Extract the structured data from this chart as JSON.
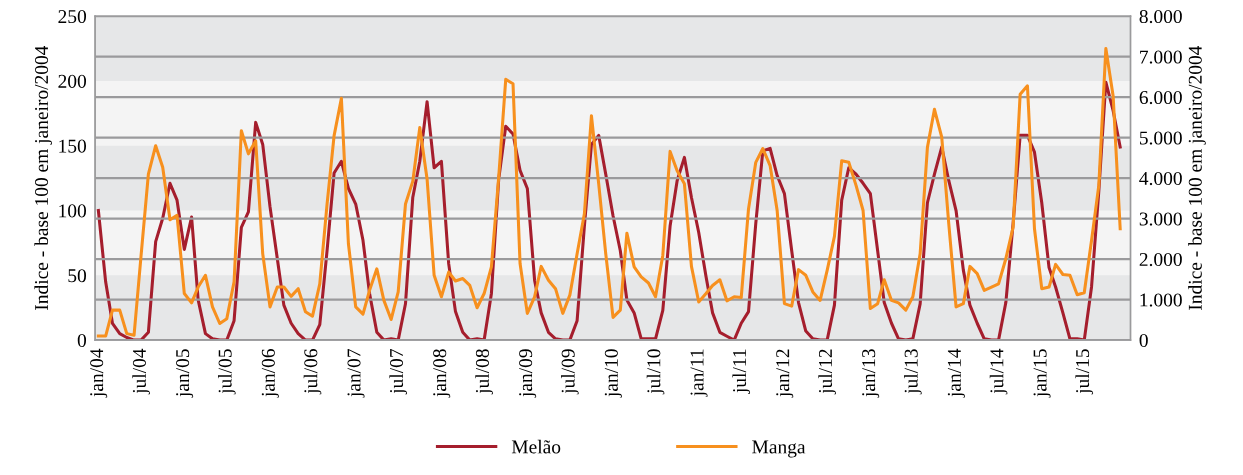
{
  "chart_data": {
    "type": "line",
    "ylabel": "Indice - base 100 em janeiro/2004",
    "y2label": "Indice - base 100 em janeiro/2004",
    "x": [
      "2004-01",
      "2004-02",
      "2004-03",
      "2004-04",
      "2004-05",
      "2004-06",
      "2004-07",
      "2004-08",
      "2004-09",
      "2004-10",
      "2004-11",
      "2004-12",
      "2005-01",
      "2005-02",
      "2005-03",
      "2005-04",
      "2005-05",
      "2005-06",
      "2005-07",
      "2005-08",
      "2005-09",
      "2005-10",
      "2005-11",
      "2005-12",
      "2006-01",
      "2006-02",
      "2006-03",
      "2006-04",
      "2006-05",
      "2006-06",
      "2006-07",
      "2006-08",
      "2006-09",
      "2006-10",
      "2006-11",
      "2006-12",
      "2007-01",
      "2007-02",
      "2007-03",
      "2007-04",
      "2007-05",
      "2007-06",
      "2007-07",
      "2007-08",
      "2007-09",
      "2007-10",
      "2007-11",
      "2007-12",
      "2008-01",
      "2008-02",
      "2008-03",
      "2008-04",
      "2008-05",
      "2008-06",
      "2008-07",
      "2008-08",
      "2008-09",
      "2008-10",
      "2008-11",
      "2008-12",
      "2009-01",
      "2009-02",
      "2009-03",
      "2009-04",
      "2009-05",
      "2009-06",
      "2009-07",
      "2009-08",
      "2009-09",
      "2009-10",
      "2009-11",
      "2009-12",
      "2010-01",
      "2010-02",
      "2010-03",
      "2010-04",
      "2010-05",
      "2010-06",
      "2010-07",
      "2010-08",
      "2010-09",
      "2010-10",
      "2010-11",
      "2010-12",
      "2011-01",
      "2011-02",
      "2011-03",
      "2011-04",
      "2011-05",
      "2011-06",
      "2011-07",
      "2011-08",
      "2011-09",
      "2011-10",
      "2011-11",
      "2011-12",
      "2012-01",
      "2012-02",
      "2012-03",
      "2012-04",
      "2012-05",
      "2012-06",
      "2012-07",
      "2012-08",
      "2012-09",
      "2012-10",
      "2012-11",
      "2012-12",
      "2013-01",
      "2013-02",
      "2013-03",
      "2013-04",
      "2013-05",
      "2013-06",
      "2013-07",
      "2013-08",
      "2013-09",
      "2013-10",
      "2013-11",
      "2013-12",
      "2014-01",
      "2014-02",
      "2014-03",
      "2014-04",
      "2014-05",
      "2014-06",
      "2014-07",
      "2014-08",
      "2014-09",
      "2014-10",
      "2014-11",
      "2014-12",
      "2015-01",
      "2015-02",
      "2015-03",
      "2015-04",
      "2015-05",
      "2015-06",
      "2015-07",
      "2015-08",
      "2015-09",
      "2015-10",
      "2015-11",
      "2015-12"
    ],
    "series": [
      {
        "name": "Melão",
        "color": "#a51e2d",
        "values": [
          100,
          45,
          13,
          5,
          2,
          0,
          0,
          6,
          76,
          94,
          121,
          108,
          70,
          95,
          31,
          5,
          1,
          0,
          0,
          15,
          87,
          99,
          168,
          151,
          103,
          63,
          27,
          13,
          5,
          0,
          0,
          12,
          69,
          129,
          138,
          117,
          105,
          77,
          36,
          6,
          0,
          1,
          0,
          28,
          110,
          138,
          184,
          133,
          138,
          59,
          22,
          6,
          0,
          1,
          0,
          36,
          124,
          165,
          159,
          131,
          117,
          46,
          21,
          6,
          1,
          0,
          0,
          15,
          88,
          151,
          158,
          128,
          96,
          69,
          31,
          21,
          1,
          1,
          1,
          23,
          88,
          123,
          141,
          110,
          83,
          49,
          21,
          6,
          3,
          0,
          13,
          22,
          90,
          146,
          148,
          127,
          113,
          69,
          29,
          7,
          1,
          0,
          0,
          27,
          108,
          133,
          128,
          121,
          113,
          69,
          29,
          13,
          1,
          0,
          1,
          28,
          106,
          128,
          149,
          123,
          100,
          54,
          27,
          13,
          1,
          0,
          0,
          29,
          90,
          158,
          158,
          145,
          106,
          56,
          41,
          21,
          1,
          1,
          0,
          41,
          115,
          199,
          177,
          149
        ]
      },
      {
        "name": "Manga",
        "color": "#f7901e",
        "axis": "y2",
        "values": [
          100,
          100,
          740,
          740,
          160,
          120,
          2100,
          4100,
          4800,
          4270,
          2970,
          3080,
          1150,
          920,
          1310,
          1600,
          820,
          410,
          530,
          1440,
          5170,
          4600,
          4920,
          2130,
          820,
          1310,
          1310,
          1080,
          1270,
          700,
          590,
          1390,
          3360,
          5050,
          5970,
          2380,
          820,
          640,
          1230,
          1760,
          980,
          510,
          1190,
          3360,
          3920,
          5250,
          3980,
          1600,
          1070,
          1680,
          1460,
          1520,
          1350,
          800,
          1150,
          1810,
          4020,
          6440,
          6330,
          1890,
          660,
          1070,
          1820,
          1480,
          1270,
          660,
          1110,
          2130,
          3120,
          5540,
          3860,
          2130,
          560,
          740,
          2640,
          1810,
          1560,
          1410,
          1070,
          2090,
          4660,
          4180,
          3860,
          1820,
          940,
          1150,
          1350,
          1490,
          970,
          1070,
          1050,
          3240,
          4390,
          4730,
          4310,
          3200,
          900,
          840,
          1740,
          1600,
          1190,
          980,
          1720,
          2560,
          4430,
          4390,
          3820,
          3200,
          780,
          900,
          1490,
          980,
          920,
          740,
          1070,
          2130,
          4760,
          5700,
          5010,
          2870,
          820,
          900,
          1820,
          1640,
          1230,
          1310,
          1390,
          2010,
          2790,
          6070,
          6280,
          2750,
          1270,
          1310,
          1870,
          1620,
          1600,
          1120,
          1170,
          2460,
          3820,
          7200,
          6030,
          2750
        ]
      }
    ],
    "xlim": [
      "2003-12-18",
      "2016-01-14"
    ],
    "xticks": [
      {
        "value": "2004-01",
        "label": "jan/04"
      },
      {
        "value": "2004-07",
        "label": "jul/04"
      },
      {
        "value": "2005-01",
        "label": "jan/05"
      },
      {
        "value": "2005-07",
        "label": "jul/05"
      },
      {
        "value": "2006-01",
        "label": "jan/06"
      },
      {
        "value": "2006-07",
        "label": "jul/06"
      },
      {
        "value": "2007-01",
        "label": "jan/07"
      },
      {
        "value": "2007-07",
        "label": "jul/07"
      },
      {
        "value": "2008-01",
        "label": "jan/08"
      },
      {
        "value": "2008-07",
        "label": "jul/08"
      },
      {
        "value": "2009-01",
        "label": "jan/09"
      },
      {
        "value": "2009-07",
        "label": "jul/09"
      },
      {
        "value": "2010-01",
        "label": "jan/10"
      },
      {
        "value": "2010-07",
        "label": "jul/10"
      },
      {
        "value": "2011-01",
        "label": "jan/11"
      },
      {
        "value": "2011-07",
        "label": "jul/11"
      },
      {
        "value": "2012-01",
        "label": "jan/12"
      },
      {
        "value": "2012-07",
        "label": "jul/12"
      },
      {
        "value": "2013-01",
        "label": "jan/13"
      },
      {
        "value": "2013-07",
        "label": "jul/13"
      },
      {
        "value": "2014-01",
        "label": "jan/14"
      },
      {
        "value": "2014-07",
        "label": "jul/14"
      },
      {
        "value": "2015-01",
        "label": "jan/15"
      },
      {
        "value": "2015-07",
        "label": "jul/15"
      }
    ],
    "ylim": [
      0,
      250
    ],
    "yticks": [
      0,
      50,
      100,
      150,
      200,
      250
    ],
    "y2lim": [
      0,
      8000
    ],
    "y2ticks": [
      {
        "value": 0,
        "label": "0"
      },
      {
        "value": 1000,
        "label": "1.000"
      },
      {
        "value": 2000,
        "label": "2.000"
      },
      {
        "value": 3000,
        "label": "3.000"
      },
      {
        "value": 4000,
        "label": "4.000"
      },
      {
        "value": 5000,
        "label": "5.000"
      },
      {
        "value": 6000,
        "label": "6.000"
      },
      {
        "value": 7000,
        "label": "7.000"
      },
      {
        "value": 8000,
        "label": "8.000"
      }
    ],
    "bands": [
      {
        "axis": "y",
        "from": 0,
        "to": 50,
        "color": "#e6e7e8"
      },
      {
        "axis": "y",
        "from": 100,
        "to": 150,
        "color": "#e6e7e8"
      },
      {
        "axis": "y",
        "from": 200,
        "to": 250,
        "color": "#e6e7e8"
      }
    ],
    "grid": "y2",
    "legend": "bottom",
    "marker": "none",
    "line_style": "solid"
  }
}
